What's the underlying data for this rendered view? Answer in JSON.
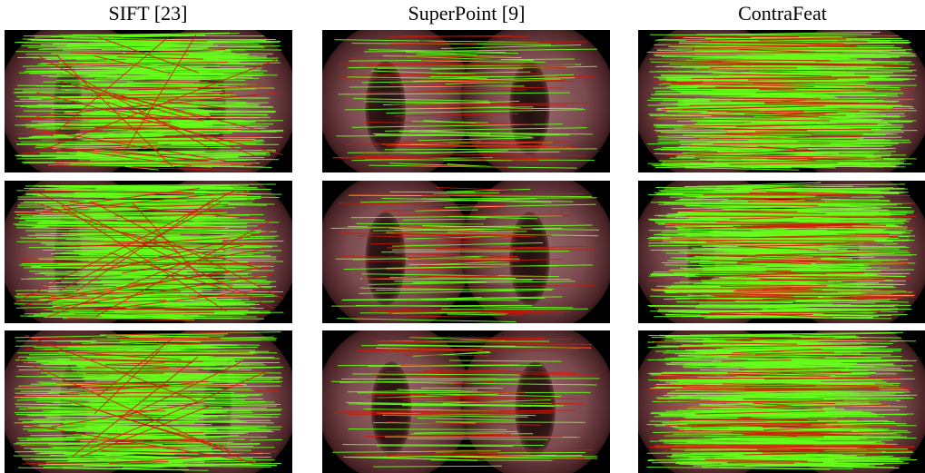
{
  "columns": [
    {
      "title": "SIFT [23]"
    },
    {
      "title": "SuperPoint [9]"
    },
    {
      "title": "ContraFeat"
    }
  ]
}
